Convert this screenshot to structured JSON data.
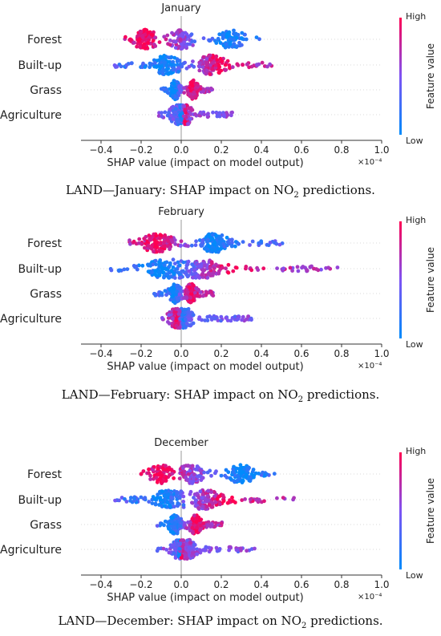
{
  "colors": {
    "high": "#ff0052",
    "low": "#008bfb",
    "mid": "#7e52f4",
    "axis": "#333333",
    "grid": "#cccccc"
  },
  "captions": [
    {
      "prefix": "LAND—January: SHAP impact on NO",
      "sub": "2",
      "suffix": " predictions."
    },
    {
      "prefix": "LAND—February: SHAP impact on NO",
      "sub": "2",
      "suffix": " predictions."
    },
    {
      "prefix": "LAND—December: SHAP impact on NO",
      "sub": "2",
      "suffix": " predictions."
    }
  ],
  "chart_data": [
    {
      "type": "scatter",
      "subtype": "shap-beeswarm",
      "title": "January",
      "xlabel": "SHAP value (impact on model output)",
      "x_scale_label": "×10⁻⁴",
      "xlim": [
        -0.5,
        1.0
      ],
      "xticks": [
        -0.4,
        -0.2,
        0.0,
        0.2,
        0.4,
        0.6,
        0.8,
        1.0
      ],
      "xtick_labels": [
        "−0.4",
        "−0.2",
        "0.0",
        "0.2",
        "0.4",
        "0.6",
        "0.8",
        "1.0"
      ],
      "colorbar": {
        "label": "Feature value",
        "high": "High",
        "low": "Low"
      },
      "features": [
        {
          "name": "Forest",
          "min": -0.29,
          "max": 0.4,
          "high_center": -0.18,
          "low_center": 0.24,
          "density_peaks": [
            -0.18,
            0.0,
            0.25
          ]
        },
        {
          "name": "Built-up",
          "min": -0.35,
          "max": 0.46,
          "high_center": 0.2,
          "low_center": -0.08,
          "density_peaks": [
            -0.07,
            0.15
          ]
        },
        {
          "name": "Grass",
          "min": -0.1,
          "max": 0.16,
          "high_center": 0.05,
          "low_center": -0.04,
          "density_peaks": [
            -0.03,
            0.06
          ]
        },
        {
          "name": "Agriculture",
          "min": -0.12,
          "max": 0.27,
          "high_center": 0.02,
          "low_center": 0.0,
          "density_peaks": [
            -0.02,
            0.02
          ]
        }
      ]
    },
    {
      "type": "scatter",
      "subtype": "shap-beeswarm",
      "title": "February",
      "xlabel": "SHAP value (impact on model output)",
      "x_scale_label": "×10⁻⁴",
      "xlim": [
        -0.5,
        1.0
      ],
      "xticks": [
        -0.4,
        -0.2,
        0.0,
        0.2,
        0.4,
        0.6,
        0.8,
        1.0
      ],
      "xtick_labels": [
        "−0.4",
        "−0.2",
        "0.0",
        "0.2",
        "0.4",
        "0.6",
        "0.8",
        "1.0"
      ],
      "colorbar": {
        "label": "Feature value",
        "high": "High",
        "low": "Low"
      },
      "features": [
        {
          "name": "Forest",
          "min": -0.3,
          "max": 0.53,
          "high_center": -0.12,
          "low_center": 0.17,
          "density_peaks": [
            -0.12,
            0.16
          ]
        },
        {
          "name": "Built-up",
          "min": -0.36,
          "max": 0.78,
          "high_center": 0.25,
          "low_center": -0.1,
          "density_peaks": [
            -0.07,
            0.1
          ]
        },
        {
          "name": "Grass",
          "min": -0.14,
          "max": 0.17,
          "high_center": 0.05,
          "low_center": -0.04,
          "density_peaks": [
            -0.03,
            0.05
          ]
        },
        {
          "name": "Agriculture",
          "min": -0.1,
          "max": 0.35,
          "high_center": -0.02,
          "low_center": 0.01,
          "density_peaks": [
            -0.02,
            0.02
          ]
        }
      ]
    },
    {
      "type": "scatter",
      "subtype": "shap-beeswarm",
      "title": "December",
      "xlabel": "SHAP value (impact on model output)",
      "x_scale_label": "×10⁻⁴",
      "xlim": [
        -0.5,
        1.0
      ],
      "xticks": [
        -0.4,
        -0.2,
        0.0,
        0.2,
        0.4,
        0.6,
        0.8,
        1.0
      ],
      "xtick_labels": [
        "−0.4",
        "−0.2",
        "0.0",
        "0.2",
        "0.4",
        "0.6",
        "0.8",
        "1.0"
      ],
      "colorbar": {
        "label": "Feature value",
        "high": "High",
        "low": "Low"
      },
      "features": [
        {
          "name": "Forest",
          "min": -0.21,
          "max": 0.47,
          "high_center": -0.1,
          "low_center": 0.3,
          "density_peaks": [
            -0.1,
            0.05,
            0.3
          ]
        },
        {
          "name": "Built-up",
          "min": -0.34,
          "max": 0.57,
          "high_center": 0.22,
          "low_center": -0.1,
          "density_peaks": [
            -0.06,
            0.12
          ]
        },
        {
          "name": "Grass",
          "min": -0.12,
          "max": 0.21,
          "high_center": 0.08,
          "low_center": -0.05,
          "density_peaks": [
            -0.03,
            0.07
          ]
        },
        {
          "name": "Agriculture",
          "min": -0.12,
          "max": 0.38,
          "high_center": 0.0,
          "low_center": -0.01,
          "density_peaks": [
            -0.01,
            0.03
          ]
        }
      ]
    }
  ]
}
